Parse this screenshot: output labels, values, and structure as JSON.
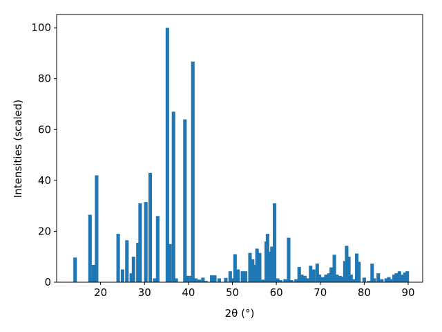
{
  "chart_data": {
    "type": "bar",
    "xlabel": "2θ (°)",
    "ylabel": "Intensities (scaled)",
    "x": [
      14.2,
      17.6,
      18.4,
      19.1,
      24,
      25,
      26,
      27,
      27.5,
      28.5,
      29,
      30.3,
      31.3,
      32.3,
      33,
      35.2,
      35.8,
      36.6,
      37.2,
      39.2,
      39.8,
      40.6,
      41,
      41.7,
      42.5,
      43.3,
      44,
      45.3,
      46,
      47,
      48.5,
      49.5,
      50.2,
      50.6,
      51.3,
      52.3,
      53,
      54,
      54.6,
      55,
      55.6,
      56.2,
      57,
      57.7,
      58,
      58.5,
      59,
      59.6,
      60.3,
      61,
      62,
      62.8,
      63.5,
      64.5,
      65.2,
      65.8,
      66.5,
      67.2,
      67.8,
      68.5,
      69.3,
      69.8,
      70.5,
      71.3,
      72,
      72.5,
      73.2,
      73.8,
      74.5,
      75,
      75.6,
      76,
      76.5,
      77,
      77.6,
      78.3,
      78.8,
      80,
      81,
      81.8,
      82.3,
      83.2,
      84,
      85,
      85.6,
      86,
      86.8,
      87.3,
      88,
      88.6,
      89.3,
      89.8
    ],
    "values": [
      9.7,
      26.5,
      6.8,
      42,
      19,
      5,
      16.5,
      3.5,
      10,
      15.5,
      31,
      31.5,
      43,
      1.5,
      26,
      100,
      15,
      67,
      1.5,
      64,
      2.5,
      2.5,
      86.7,
      1.5,
      1,
      1.8,
      0.5,
      2.7,
      2.7,
      1.5,
      1.7,
      4.3,
      1.5,
      11,
      5,
      4.3,
      4.3,
      11.5,
      9,
      6.8,
      13.2,
      11.5,
      1,
      16,
      19,
      12,
      14,
      31,
      1.5,
      0.8,
      1.2,
      17.5,
      0.8,
      1.2,
      6,
      3,
      2.5,
      1.5,
      6.5,
      5,
      7.3,
      3,
      2,
      3,
      3.5,
      5.8,
      10.8,
      3,
      2.5,
      2.2,
      8.3,
      14.3,
      10,
      3,
      1.2,
      11.3,
      8,
      1.8,
      0.5,
      7.3,
      1.5,
      3.5,
      1.2,
      1.5,
      2,
      1.2,
      3,
      3.5,
      4.3,
      3,
      3.8,
      4.3
    ],
    "color": "#1f77b4",
    "xlim": [
      10,
      93.3
    ],
    "xticks": [
      20,
      30,
      40,
      50,
      60,
      70,
      80,
      90
    ],
    "ylim": [
      0,
      105.2
    ],
    "yticks": [
      0,
      20,
      40,
      60,
      80,
      100
    ]
  }
}
